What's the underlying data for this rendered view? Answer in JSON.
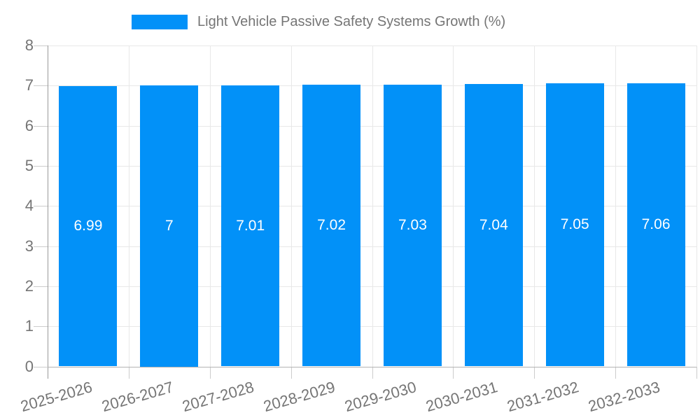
{
  "legend": {
    "label": "Light Vehicle Passive Safety Systems Growth (%)"
  },
  "chart_data": {
    "type": "bar",
    "title": "Light Vehicle Passive Safety Systems Growth (%)",
    "categories": [
      "2025-2026",
      "2026-2027",
      "2027-2028",
      "2028-2029",
      "2029-2030",
      "2030-2031",
      "2031-2032",
      "2032-2033"
    ],
    "values": [
      6.99,
      7,
      7.01,
      7.02,
      7.03,
      7.04,
      7.05,
      7.06
    ],
    "value_labels": [
      "6.99",
      "7",
      "7.01",
      "7.02",
      "7.03",
      "7.04",
      "7.05",
      "7.06"
    ],
    "xlabel": "",
    "ylabel": "",
    "y_ticks": [
      0,
      1,
      2,
      3,
      4,
      5,
      6,
      7,
      8
    ],
    "ylim": [
      0,
      8
    ],
    "grid": true,
    "legend_position": "top",
    "colors": {
      "bar": "#0291f8",
      "grid": "#e8e8e8",
      "axis": "#999999",
      "tick": "#cccccc",
      "tick_label": "#757575",
      "value_label": "#ffffff"
    }
  }
}
